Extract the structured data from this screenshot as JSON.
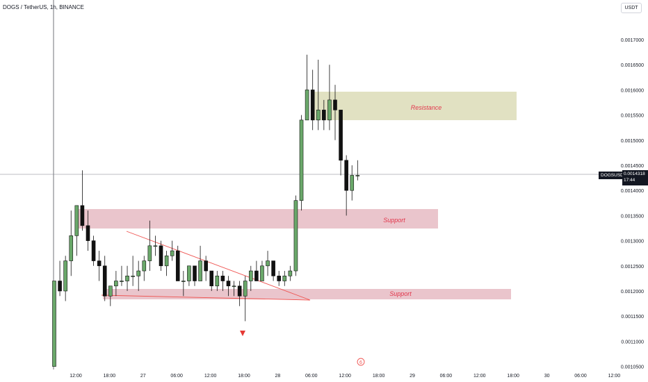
{
  "header": {
    "symbol_title": "DOGS / TetherUS, 1h, BINANCE",
    "currency_button": "USDT"
  },
  "last_price_badge": {
    "ticker": "DOGSUSDT",
    "price": "0.0014318",
    "countdown": "17:44"
  },
  "annotations": {
    "resistance_label": "Resistance",
    "support_upper_label": "Support",
    "support_lower_label": "Support"
  },
  "colors": {
    "up": "#6aa86a",
    "down": "#111111",
    "resistance_zone": "#d9d9b3",
    "support_zone": "#e5b6bf",
    "trendline": "#ef5350",
    "arrow": "#e53935",
    "zone_text": "#e2384d"
  },
  "chart_data": {
    "type": "candlestick",
    "yaxis": {
      "range": [
        0.00105,
        0.0017
      ],
      "tick_labels": [
        "0.0017000",
        "0.0016500",
        "0.0016000",
        "0.0015500",
        "0.0015000",
        "0.0014500",
        "0.0014000",
        "0.0013500",
        "0.0013000",
        "0.0012500",
        "0.0012000",
        "0.0011500",
        "0.0011000",
        "0.0010500"
      ]
    },
    "xaxis": {
      "tick_labels": [
        "12:00",
        "18:00",
        "27",
        "06:00",
        "12:00",
        "18:00",
        "28",
        "06:00",
        "12:00",
        "18:00",
        "29",
        "06:00",
        "12:00",
        "18:00",
        "30",
        "06:00",
        "12:00"
      ]
    },
    "candles": [
      [
        0.00105,
        0.00122,
        0.00105,
        0.00122
      ],
      [
        0.00122,
        0.00126,
        0.00119,
        0.0012
      ],
      [
        0.0012,
        0.00127,
        0.00118,
        0.00126
      ],
      [
        0.00126,
        0.00136,
        0.00123,
        0.00131
      ],
      [
        0.00131,
        0.00137,
        0.00127,
        0.00137
      ],
      [
        0.00137,
        0.00144,
        0.00132,
        0.00133
      ],
      [
        0.00133,
        0.00136,
        0.00128,
        0.0013
      ],
      [
        0.0013,
        0.00131,
        0.00125,
        0.00126
      ],
      [
        0.00126,
        0.00128,
        0.00122,
        0.00125
      ],
      [
        0.00125,
        0.00127,
        0.00118,
        0.00119
      ],
      [
        0.00119,
        0.00121,
        0.00117,
        0.00121
      ],
      [
        0.00121,
        0.00124,
        0.00119,
        0.00122
      ],
      [
        0.00122,
        0.00125,
        0.00121,
        0.00122
      ],
      [
        0.00122,
        0.00125,
        0.0012,
        0.00123
      ],
      [
        0.00123,
        0.00127,
        0.00121,
        0.00123
      ],
      [
        0.00123,
        0.00126,
        0.0012,
        0.00124
      ],
      [
        0.00124,
        0.00127,
        0.00122,
        0.00126
      ],
      [
        0.00126,
        0.00134,
        0.00124,
        0.00129
      ],
      [
        0.00129,
        0.00131,
        0.00127,
        0.00129
      ],
      [
        0.00129,
        0.0013,
        0.00124,
        0.00125
      ],
      [
        0.00125,
        0.00128,
        0.00123,
        0.00127
      ],
      [
        0.00127,
        0.0013,
        0.00126,
        0.00128
      ],
      [
        0.00128,
        0.00129,
        0.00122,
        0.00122
      ],
      [
        0.00122,
        0.00124,
        0.00119,
        0.00122
      ],
      [
        0.00122,
        0.00125,
        0.00121,
        0.00125
      ],
      [
        0.00125,
        0.00125,
        0.00121,
        0.00122
      ],
      [
        0.00122,
        0.00129,
        0.00122,
        0.00126
      ],
      [
        0.00126,
        0.00127,
        0.00122,
        0.00124
      ],
      [
        0.00124,
        0.00124,
        0.0012,
        0.00121
      ],
      [
        0.00121,
        0.00124,
        0.0012,
        0.00123
      ],
      [
        0.00123,
        0.00124,
        0.0012,
        0.00122
      ],
      [
        0.00122,
        0.00123,
        0.00119,
        0.00121
      ],
      [
        0.00121,
        0.00122,
        0.00119,
        0.00121
      ],
      [
        0.00121,
        0.00122,
        0.00117,
        0.00119
      ],
      [
        0.00119,
        0.00123,
        0.00114,
        0.00122
      ],
      [
        0.00122,
        0.00125,
        0.0012,
        0.00124
      ],
      [
        0.00124,
        0.00126,
        0.00122,
        0.00122
      ],
      [
        0.00122,
        0.00126,
        0.00122,
        0.00125
      ],
      [
        0.00125,
        0.00128,
        0.00123,
        0.00126
      ],
      [
        0.00126,
        0.00126,
        0.00122,
        0.00123
      ],
      [
        0.00123,
        0.00124,
        0.00121,
        0.00122
      ],
      [
        0.00122,
        0.00124,
        0.00121,
        0.00123
      ],
      [
        0.00123,
        0.00125,
        0.00122,
        0.00124
      ],
      [
        0.00124,
        0.00139,
        0.00123,
        0.00138
      ],
      [
        0.00138,
        0.00155,
        0.00136,
        0.00154
      ],
      [
        0.00154,
        0.00167,
        0.00154,
        0.0016
      ],
      [
        0.0016,
        0.00164,
        0.00152,
        0.00154
      ],
      [
        0.00154,
        0.00166,
        0.00152,
        0.00156
      ],
      [
        0.00156,
        0.00158,
        0.00152,
        0.00154
      ],
      [
        0.00154,
        0.00165,
        0.00152,
        0.00158
      ],
      [
        0.00158,
        0.00161,
        0.0015,
        0.00156
      ],
      [
        0.00156,
        0.00156,
        0.00143,
        0.00146
      ],
      [
        0.00146,
        0.00147,
        0.00135,
        0.0014
      ],
      [
        0.0014,
        0.00145,
        0.00138,
        0.00143
      ],
      [
        0.00143,
        0.00146,
        0.00142,
        0.00143
      ]
    ]
  }
}
